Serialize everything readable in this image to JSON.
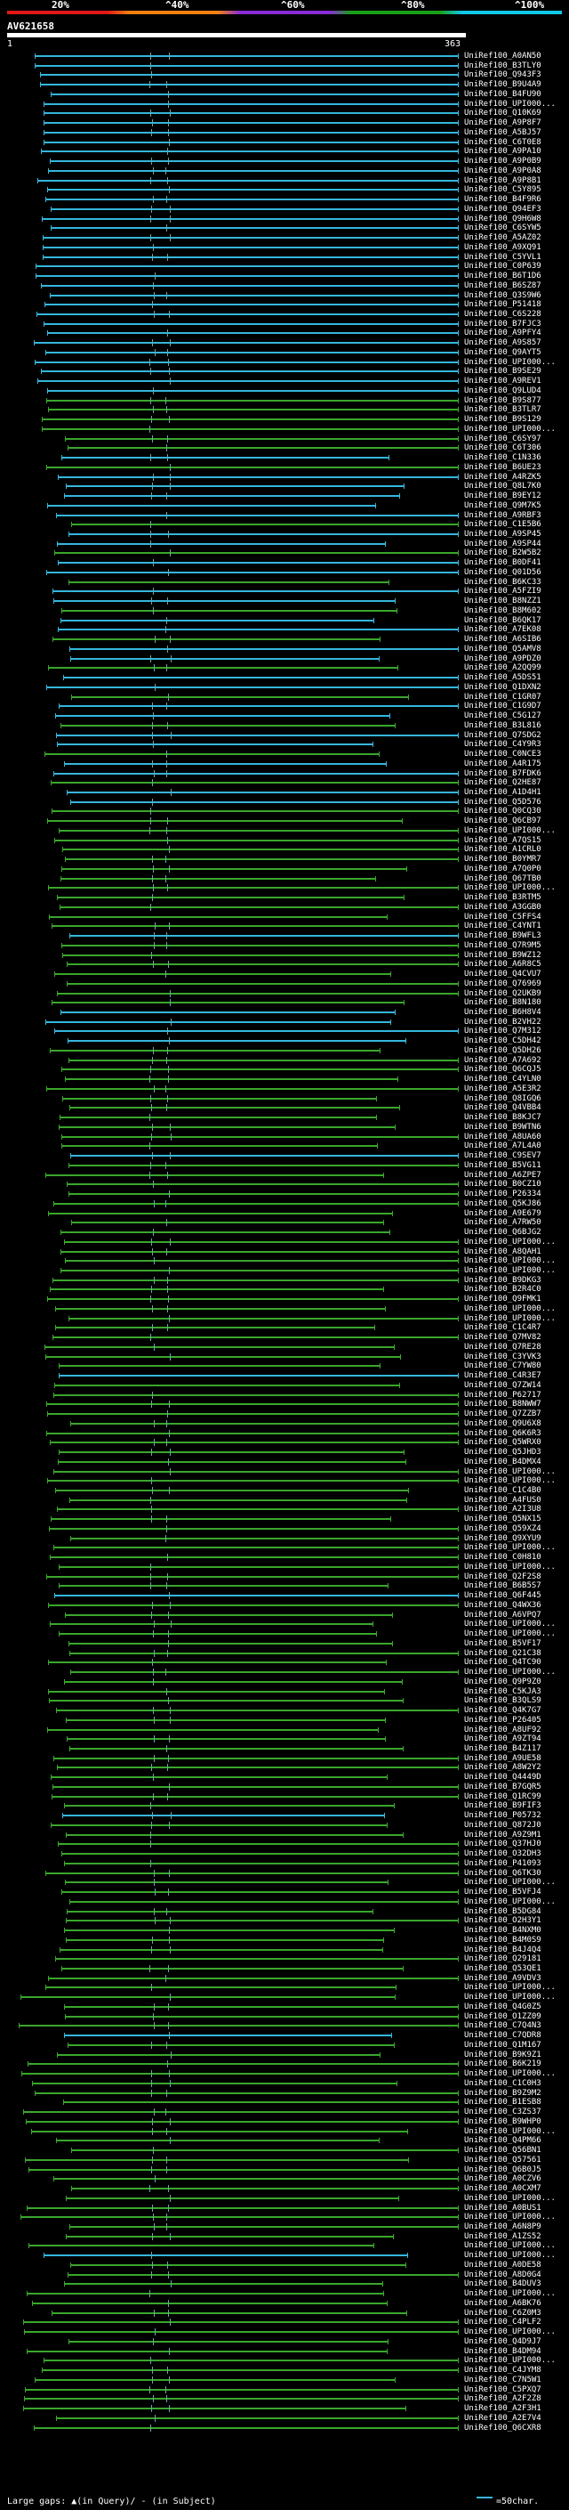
{
  "scale": {
    "labels": [
      "20%",
      "^40%",
      "^60%",
      "^80%",
      "^100%"
    ],
    "colors": [
      "#e01818",
      "#f08010",
      "#8a2bd8",
      "#18a018",
      "#10c8e8"
    ]
  },
  "query": {
    "id": "AV621658",
    "start": "1",
    "end": "363"
  },
  "series_colors": {
    "high": "#35b6dc",
    "medium": "#3aa62c"
  },
  "hits": [
    "UniRef100_A0AN50",
    "UniRef100_B3TLY0",
    "UniRef100_Q943F3",
    "UniRef100_B9U4A9",
    "UniRef100_B4FU90",
    "UniRef100_UPI000...",
    "UniRef100_Q10K69",
    "UniRef100_A9P8F7",
    "UniRef100_A5BJ57",
    "UniRef100_C6T0E8",
    "UniRef100_A9PA10",
    "UniRef100_A9P0B9",
    "UniRef100_A9P0A8",
    "UniRef100_A9P8B1",
    "UniRef100_C5Y895",
    "UniRef100_B4F9R6",
    "UniRef100_Q94EF3",
    "UniRef100_Q9H6W8",
    "UniRef100_C6SYW5",
    "UniRef100_A5AZ02",
    "UniRef100_A9XQ91",
    "UniRef100_C5YVL1",
    "UniRef100_C0P639",
    "UniRef100_B6T1D6",
    "UniRef100_B6SZ87",
    "UniRef100_Q3S9W6",
    "UniRef100_P51418",
    "UniRef100_C6S228",
    "UniRef100_B7FJC3",
    "UniRef100_A9PFY4",
    "UniRef100_A9S857",
    "UniRef100_Q9AYT5",
    "UniRef100_UPI000...",
    "UniRef100_B9SE29",
    "UniRef100_A9REV1",
    "UniRef100_Q9LUD4",
    "UniRef100_B9S877",
    "UniRef100_B3TLR7",
    "UniRef100_B9S129",
    "UniRef100_UPI000...",
    "UniRef100_C6SY97",
    "UniRef100_C6T306",
    "UniRef100_C1N336",
    "UniRef100_B6UE23",
    "UniRef100_A4RZK5",
    "UniRef100_Q8L7K0",
    "UniRef100_B9EY12",
    "UniRef100_Q9M7K5",
    "UniRef100_A9RBF3",
    "UniRef100_C1E5B6",
    "UniRef100_A9SP45",
    "UniRef100_A9SP44",
    "UniRef100_B2W5B2",
    "UniRef100_B0DF41",
    "UniRef100_Q01D56",
    "UniRef100_B6KC33",
    "UniRef100_A5FZI9",
    "UniRef100_B8NZZ1",
    "UniRef100_B8M602",
    "UniRef100_B6QK17",
    "UniRef100_A7EK08",
    "UniRef100_A6SIB6",
    "UniRef100_Q5AMV8",
    "UniRef100_A9PDZ0",
    "UniRef100_A2QQ99",
    "UniRef100_A5DS51",
    "UniRef100_Q1DXN2",
    "UniRef100_C1GR07",
    "UniRef100_C1G9D7",
    "UniRef100_C5G127",
    "UniRef100_B3L816",
    "UniRef100_Q7SDG2",
    "UniRef100_C4Y9R3",
    "UniRef100_C0NCE3",
    "UniRef100_A4R175",
    "UniRef100_B7FDK6",
    "UniRef100_Q2HE87",
    "UniRef100_A1D4H1",
    "UniRef100_Q5D576",
    "UniRef100_Q0CQ30",
    "UniRef100_Q6CB97",
    "UniRef100_UPI000...",
    "UniRef100_A7QS15",
    "UniRef100_A1CRL0",
    "UniRef100_B0YMR7",
    "UniRef100_A7Q0P0",
    "UniRef100_Q67TB0",
    "UniRef100_UPI000...",
    "UniRef100_B3RTM5",
    "UniRef100_A3GGB0",
    "UniRef100_C5FFS4",
    "UniRef100_C4YNT1",
    "UniRef100_B9WFL3",
    "UniRef100_Q7R9M5",
    "UniRef100_B9WZ12",
    "UniRef100_A6R8C5",
    "UniRef100_Q4CVU7",
    "UniRef100_Q76969",
    "UniRef100_Q2UKB9",
    "UniRef100_B8N180",
    "UniRef100_B6H8V4",
    "UniRef100_B2VH22",
    "UniRef100_Q7M312",
    "UniRef100_C5DH42",
    "UniRef100_Q5DH26",
    "UniRef100_A7A692",
    "UniRef100_Q6CQJ5",
    "UniRef100_C4YLN0",
    "UniRef100_A5E3R2",
    "UniRef100_Q8IGQ6",
    "UniRef100_Q4VBB4",
    "UniRef100_B8KJC7",
    "UniRef100_B9WTN6",
    "UniRef100_A8UA60",
    "UniRef100_A7L4A0",
    "UniRef100_C9SEV7",
    "UniRef100_B5VG11",
    "UniRef100_A6ZPE7",
    "UniRef100_B0CZ10",
    "UniRef100_P26334",
    "UniRef100_Q5KJ86",
    "UniRef100_A9E679",
    "UniRef100_A7RW50",
    "UniRef100_Q6BJG2",
    "UniRef100_UPI000...",
    "UniRef100_A8QAH1",
    "UniRef100_UPI000...",
    "UniRef100_UPI000...",
    "UniRef100_B9DKG3",
    "UniRef100_B2R4C0",
    "UniRef100_Q9FMK1",
    "UniRef100_UPI000...",
    "UniRef100_UPI000...",
    "UniRef100_C1C4R7",
    "UniRef100_Q7MV82",
    "UniRef100_Q7RE28",
    "UniRef100_C3YVK3",
    "UniRef100_C7YW80",
    "UniRef100_C4R3E7",
    "UniRef100_Q7ZW14",
    "UniRef100_P62717",
    "UniRef100_B8NWW7",
    "UniRef100_Q7ZZB7",
    "UniRef100_Q9U6X8",
    "UniRef100_Q6K6R3",
    "UniRef100_Q5WRX0",
    "UniRef100_Q5JHD3",
    "UniRef100_B4DMX4",
    "UniRef100_UPI000...",
    "UniRef100_UPI000...",
    "UniRef100_C1C4B0",
    "UniRef100_A4FUS0",
    "UniRef100_A2I3U8",
    "UniRef100_Q5NX15",
    "UniRef100_Q59XZ4",
    "UniRef100_Q9XYU9",
    "UniRef100_UPI000...",
    "UniRef100_C0H810",
    "UniRef100_UPI000...",
    "UniRef100_Q2F2S8",
    "UniRef100_B6B5S7",
    "UniRef100_Q6F445",
    "UniRef100_Q4WX36",
    "UniRef100_A6VPQ7",
    "UniRef100_UPI000...",
    "UniRef100_UPI000...",
    "UniRef100_B5VF17",
    "UniRef100_Q21C38",
    "UniRef100_Q4TC90",
    "UniRef100_UPI000...",
    "UniRef100_Q9P9Z0",
    "UniRef100_C5KJA3",
    "UniRef100_B3QLS9",
    "UniRef100_Q4K7G7",
    "UniRef100_P26405",
    "UniRef100_A8UF92",
    "UniRef100_A9ZT94",
    "UniRef100_B4Z117",
    "UniRef100_A9UE58",
    "UniRef100_A8W2Y2",
    "UniRef100_Q4449D",
    "UniRef100_B7GQR5",
    "UniRef100_Q1RC99",
    "UniRef100_B9FIF3",
    "UniRef100_P05732",
    "UniRef100_Q872J0",
    "UniRef100_A9Z9M1",
    "UniRef100_Q37HJ0",
    "UniRef100_O32DH3",
    "UniRef100_P41093",
    "UniRef100_Q6TK30",
    "UniRef100_UPI000...",
    "UniRef100_B5VFJ4",
    "UniRef100_UPI000...",
    "UniRef100_B5DG84",
    "UniRef100_O2H3Y1",
    "UniRef100_B4NXM0",
    "UniRef100_B4M0S9",
    "UniRef100_B4J4Q4",
    "UniRef100_Q29181",
    "UniRef100_Q53QE1",
    "UniRef100_A9VDV3",
    "UniRef100_UPI000...",
    "UniRef100_UPI000...",
    "UniRef100_Q4G0Z5",
    "UniRef100_O1ZZ09",
    "UniRef100_C7Q4N3",
    "UniRef100_C7QDR8",
    "UniRef100_Q1M167",
    "UniRef100_B9K9Z1",
    "UniRef100_B6K219",
    "UniRef100_UPI000...",
    "UniRef100_C1C0H3",
    "UniRef100_B9Z9M2",
    "UniRef100_B1ESB8",
    "UniRef100_C3ZS37",
    "UniRef100_B9WHP0",
    "UniRef100_UPI000...",
    "UniRef100_Q4PM66",
    "UniRef100_Q56BN1",
    "UniRef100_Q57561",
    "UniRef100_Q6B0J5",
    "UniRef100_A0CZV6",
    "UniRef100_A0CXM7",
    "UniRef100_UPI000...",
    "UniRef100_A0BUS1",
    "UniRef100_UPI000...",
    "UniRef100_A6N8P9",
    "UniRef100_A1ZS52",
    "UniRef100_UPI000...",
    "UniRef100_UPI000...",
    "UniRef100_A0DE58",
    "UniRef100_A8D0G4",
    "UniRef100_B4DUV3",
    "UniRef100_UPI000...",
    "UniRef100_A6BK76",
    "UniRef100_C6Z0M3",
    "UniRef100_C4PLF2",
    "UniRef100_UPI000...",
    "UniRef100_Q4D9J7",
    "UniRef100_B4DM94",
    "UniRef100_UPI000...",
    "UniRef100_C4JYM8",
    "UniRef100_C7N5W1",
    "UniRef100_C5PXQ7",
    "UniRef100_A2F2Z8",
    "UniRef100_A2F3H1",
    "UniRef100_A2E7V4",
    "UniRef100_Q6CXR8"
  ],
  "legend": {
    "text": "Large gaps: ▲(in Query)/ - (in Subject)",
    "scale_note": "=50char."
  }
}
